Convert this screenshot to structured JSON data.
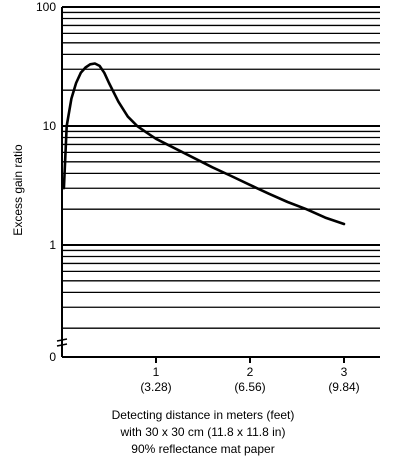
{
  "chart_data": {
    "type": "line",
    "title": "",
    "ylabel": "Excess gain ratio",
    "xlabel_lines": [
      "Detecting distance in meters (feet)",
      "with 30 x 30 cm (11.8 x 11.8 in)",
      "90% reflectance mat paper"
    ],
    "yscale": "log",
    "ylim": [
      0.1,
      100
    ],
    "xlim": [
      0,
      3.2
    ],
    "grid": true,
    "y_ticks": [
      {
        "value": 100,
        "label": "100"
      },
      {
        "value": 10,
        "label": "10"
      },
      {
        "value": 1,
        "label": "1"
      }
    ],
    "y_zero_label": "0",
    "x_ticks": [
      {
        "value": 1,
        "label": "1",
        "sublabel": "(3.28)"
      },
      {
        "value": 2,
        "label": "2",
        "sublabel": "(6.56)"
      },
      {
        "value": 3,
        "label": "3",
        "sublabel": "(9.84)"
      }
    ],
    "series": [
      {
        "name": "",
        "x": [
          0.02,
          0.05,
          0.1,
          0.15,
          0.2,
          0.25,
          0.3,
          0.35,
          0.4,
          0.45,
          0.5,
          0.6,
          0.7,
          0.8,
          0.9,
          1.0,
          1.2,
          1.4,
          1.6,
          1.8,
          2.0,
          2.2,
          2.4,
          2.6,
          2.8,
          3.0
        ],
        "values": [
          3.0,
          10.0,
          17.0,
          23.0,
          28.0,
          31.0,
          33.0,
          33.5,
          32.0,
          28.0,
          23.0,
          16.0,
          12.0,
          10.0,
          8.8,
          7.8,
          6.5,
          5.4,
          4.5,
          3.8,
          3.2,
          2.7,
          2.3,
          2.0,
          1.7,
          1.5
        ]
      }
    ]
  }
}
